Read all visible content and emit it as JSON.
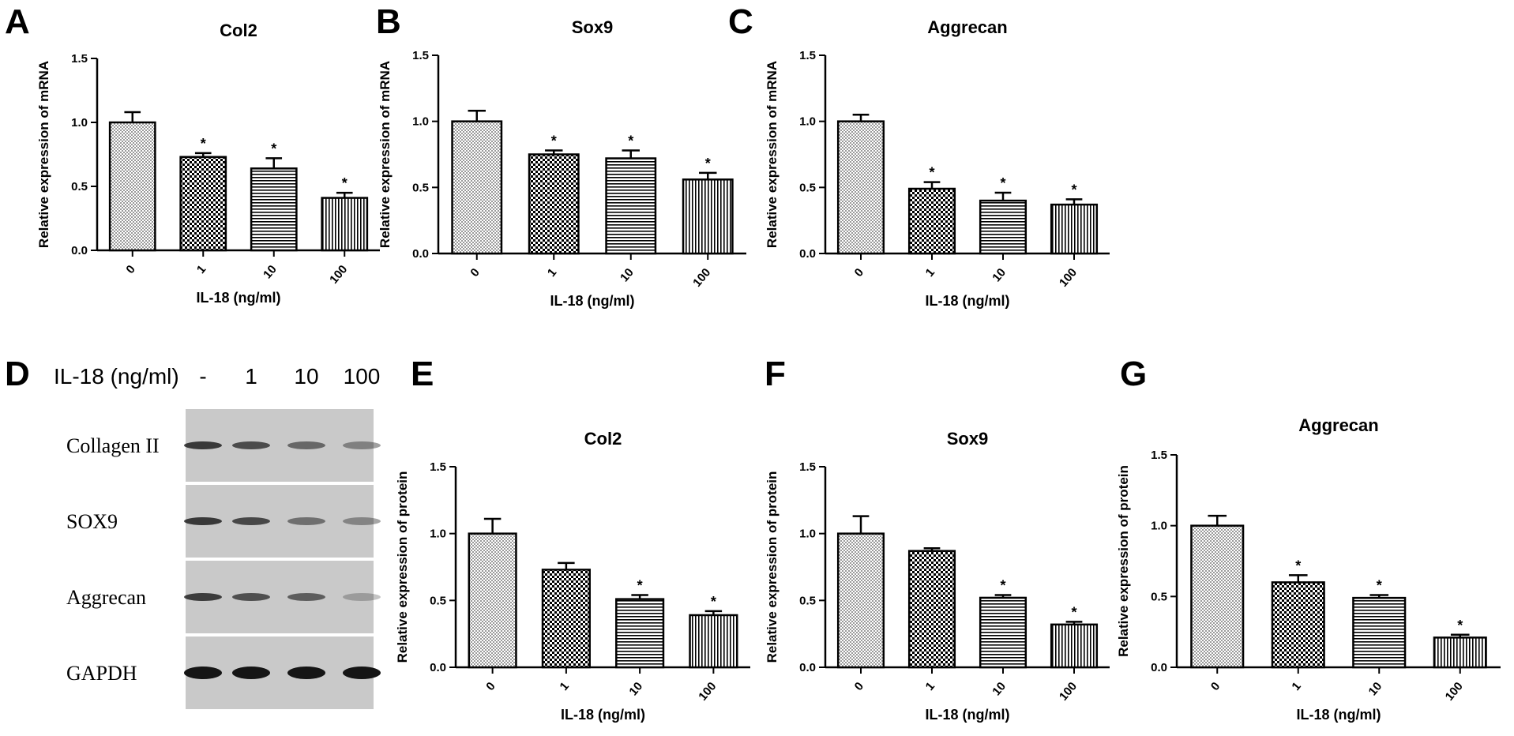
{
  "panel_letters": [
    "A",
    "B",
    "C",
    "D",
    "E",
    "F",
    "G"
  ],
  "chart_data": [
    {
      "panel": "A",
      "type": "bar",
      "title": "Col2",
      "xlabel": "IL-18 (ng/ml)",
      "ylabel": "Relative expression of mRNA",
      "categories": [
        "0",
        "1",
        "10",
        "100"
      ],
      "values": [
        1.0,
        0.73,
        0.64,
        0.41
      ],
      "errors": [
        0.08,
        0.03,
        0.08,
        0.04
      ],
      "significance": [
        "",
        "*",
        "*",
        "*"
      ],
      "ylim": [
        0,
        1.5
      ],
      "yticks": [
        "0.0",
        "0.5",
        "1.0",
        "1.5"
      ]
    },
    {
      "panel": "B",
      "type": "bar",
      "title": "Sox9",
      "xlabel": "IL-18 (ng/ml)",
      "ylabel": "Relative expression of mRNA",
      "categories": [
        "0",
        "1",
        "10",
        "100"
      ],
      "values": [
        1.0,
        0.75,
        0.72,
        0.56
      ],
      "errors": [
        0.08,
        0.03,
        0.06,
        0.05
      ],
      "significance": [
        "",
        "*",
        "*",
        "*"
      ],
      "ylim": [
        0,
        1.5
      ],
      "yticks": [
        "0.0",
        "0.5",
        "1.0",
        "1.5"
      ]
    },
    {
      "panel": "C",
      "type": "bar",
      "title": "Aggrecan",
      "xlabel": "IL-18 (ng/ml)",
      "ylabel": "Relative expression of mRNA",
      "categories": [
        "0",
        "1",
        "10",
        "100"
      ],
      "values": [
        1.0,
        0.49,
        0.4,
        0.37
      ],
      "errors": [
        0.05,
        0.05,
        0.06,
        0.04
      ],
      "significance": [
        "",
        "*",
        "*",
        "*"
      ],
      "ylim": [
        0,
        1.5
      ],
      "yticks": [
        "0.0",
        "0.5",
        "1.0",
        "1.5"
      ]
    },
    {
      "panel": "E",
      "type": "bar",
      "title": "Col2",
      "xlabel": "IL-18 (ng/ml)",
      "ylabel": "Relative expression of protein",
      "categories": [
        "0",
        "1",
        "10",
        "100"
      ],
      "values": [
        1.0,
        0.73,
        0.51,
        0.39
      ],
      "errors": [
        0.11,
        0.05,
        0.03,
        0.03
      ],
      "significance": [
        "",
        "",
        "*",
        "*"
      ],
      "ylim": [
        0,
        1.5
      ],
      "yticks": [
        "0.0",
        "0.5",
        "1.0",
        "1.5"
      ]
    },
    {
      "panel": "F",
      "type": "bar",
      "title": "Sox9",
      "xlabel": "IL-18 (ng/ml)",
      "ylabel": "Relative expression of protein",
      "categories": [
        "0",
        "1",
        "10",
        "100"
      ],
      "values": [
        1.0,
        0.87,
        0.52,
        0.32
      ],
      "errors": [
        0.13,
        0.02,
        0.02,
        0.02
      ],
      "significance": [
        "",
        "",
        "*",
        "*"
      ],
      "ylim": [
        0,
        1.5
      ],
      "yticks": [
        "0.0",
        "0.5",
        "1.0",
        "1.5"
      ]
    },
    {
      "panel": "G",
      "type": "bar",
      "title": "Aggrecan",
      "xlabel": "IL-18 (ng/ml)",
      "ylabel": "Relative expression of protein",
      "categories": [
        "0",
        "1",
        "10",
        "100"
      ],
      "values": [
        1.0,
        0.6,
        0.49,
        0.21
      ],
      "errors": [
        0.07,
        0.05,
        0.02,
        0.02
      ],
      "significance": [
        "",
        "*",
        "*",
        "*"
      ],
      "ylim": [
        0,
        1.5
      ],
      "yticks": [
        "0.0",
        "0.5",
        "1.0",
        "1.5"
      ]
    }
  ],
  "western_blot": {
    "header_label": "IL-18 (ng/ml)",
    "lanes": [
      "-",
      "1",
      "10",
      "100"
    ],
    "rows": [
      {
        "label": "Collagen II",
        "intensities": [
          0.8,
          0.7,
          0.55,
          0.4
        ]
      },
      {
        "label": "SOX9",
        "intensities": [
          0.8,
          0.72,
          0.5,
          0.38
        ]
      },
      {
        "label": "Aggrecan",
        "intensities": [
          0.78,
          0.68,
          0.6,
          0.25
        ]
      },
      {
        "label": "GAPDH",
        "intensities": [
          1.0,
          1.0,
          1.0,
          1.0
        ]
      }
    ]
  },
  "colors": {
    "ink": "#000000",
    "background": "#ffffff",
    "blot_bg": "#c9c9c9",
    "blot_band": "#151515"
  }
}
